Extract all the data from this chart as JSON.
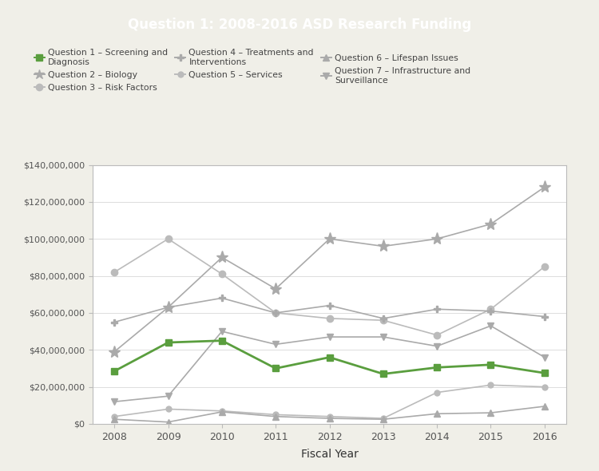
{
  "title": "Question 1: 2008-2016 ASD Research Funding",
  "title_bg": "#5a9e3e",
  "title_color": "#ffffff",
  "xlabel": "Fiscal Year",
  "years": [
    2008,
    2009,
    2010,
    2011,
    2012,
    2013,
    2014,
    2015,
    2016
  ],
  "series": {
    "Q1_Screening": {
      "label": "Question 1 – Screening and\nDiagnosis",
      "color": "#5a9e3e",
      "marker": "s",
      "markersize": 6,
      "linewidth": 2.0,
      "data": [
        28500000,
        44000000,
        45000000,
        30000000,
        36000000,
        27000000,
        30500000,
        32000000,
        27500000
      ]
    },
    "Q2_Biology": {
      "label": "Question 2 – Biology",
      "color": "#aaaaaa",
      "marker": "*",
      "markersize": 10,
      "linewidth": 1.2,
      "data": [
        39000000,
        63000000,
        90000000,
        73000000,
        100000000,
        96000000,
        100000000,
        108000000,
        128000000
      ]
    },
    "Q3_RiskFactors": {
      "label": "Question 3 – Risk Factors",
      "color": "#bbbbbb",
      "marker": "o",
      "markersize": 6,
      "linewidth": 1.2,
      "data": [
        82000000,
        100000000,
        81000000,
        60000000,
        57000000,
        56000000,
        48000000,
        62000000,
        85000000
      ]
    },
    "Q4_Treatments": {
      "label": "Question 4 – Treatments and\nInterventions",
      "color": "#aaaaaa",
      "marker": "P",
      "markersize": 6,
      "linewidth": 1.2,
      "data": [
        55000000,
        63000000,
        68000000,
        60000000,
        64000000,
        57000000,
        62000000,
        61000000,
        58000000
      ]
    },
    "Q5_Services": {
      "label": "Question 5 – Services",
      "color": "#bbbbbb",
      "marker": "o",
      "markersize": 5,
      "linewidth": 1.2,
      "data": [
        4000000,
        8000000,
        7000000,
        5000000,
        4000000,
        3000000,
        17000000,
        21000000,
        20000000
      ]
    },
    "Q6_Lifespan": {
      "label": "Question 6 – Lifespan Issues",
      "color": "#aaaaaa",
      "marker": "^",
      "markersize": 6,
      "linewidth": 1.2,
      "data": [
        2500000,
        1000000,
        6500000,
        4000000,
        3000000,
        2500000,
        5500000,
        6000000,
        9500000
      ]
    },
    "Q7_Infrastructure": {
      "label": "Question 7 – Infrastructure and\nSurveillance",
      "color": "#aaaaaa",
      "marker": "v",
      "markersize": 6,
      "linewidth": 1.2,
      "data": [
        12000000,
        15000000,
        50000000,
        43000000,
        47000000,
        47000000,
        42000000,
        53000000,
        36000000
      ]
    }
  },
  "ylim": [
    0,
    140000000
  ],
  "yticks": [
    0,
    20000000,
    40000000,
    60000000,
    80000000,
    100000000,
    120000000,
    140000000
  ],
  "background_color": "#ffffff",
  "outer_bg": "#f0efe8",
  "grid_color": "#dddddd",
  "axis_color": "#bbbbbb"
}
